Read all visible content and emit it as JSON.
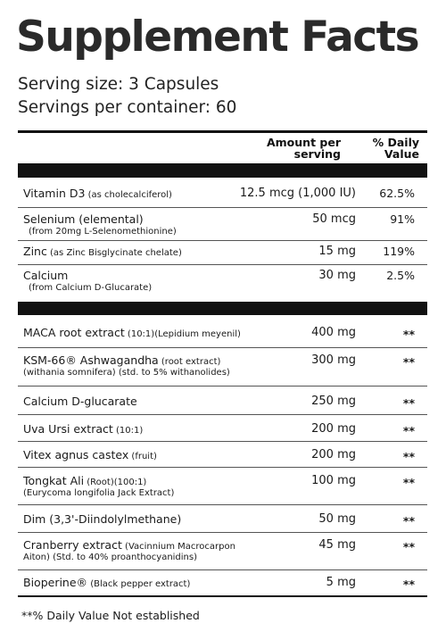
{
  "title": "Supplement Facts",
  "serving_size": "Serving size: 3 Capsules",
  "servings_per_container": "Servings per container: 60",
  "header": {
    "amount_line1": "Amount per",
    "amount_line2": "serving",
    "dv_line1": "%  Daily",
    "dv_line2": "Value"
  },
  "vitamins": [
    {
      "name": "Vitamin D3",
      "sub": " (as cholecalciferol)",
      "sub2": "",
      "amount": "12.5 mcg (1,000 IU)",
      "dv": "62.5%"
    },
    {
      "name": "Selenium (elemental)",
      "sub": "",
      "sub2": "(from 20mg L-Selenomethionine)",
      "amount": "50 mcg",
      "dv": "91%"
    },
    {
      "name": "Zinc",
      "sub": " (as Zinc Bisglycinate chelate)",
      "sub2": "",
      "amount": "15 mg",
      "dv": "119%"
    },
    {
      "name": "Calcium",
      "sub": "",
      "sub2": "(from Calcium D-Glucarate)",
      "amount": "30 mg",
      "dv": "2.5%"
    }
  ],
  "blend": [
    {
      "name": "MACA root extract",
      "sub": " (10:1)(Lepidium meyenil)",
      "sub2": "",
      "amount": "400 mg",
      "dv": "**"
    },
    {
      "name": "KSM-66® Ashwagandha",
      "sub": " (root extract)",
      "sub2": "(withania somnifera) (std. to 5% withanolides)",
      "amount": "300 mg",
      "dv": "**"
    },
    {
      "name": "Calcium D-glucarate",
      "sub": "",
      "sub2": "",
      "amount": "250 mg",
      "dv": "**"
    },
    {
      "name": "Uva Ursi extract",
      "sub": " (10:1)",
      "sub2": "",
      "amount": "200 mg",
      "dv": "**"
    },
    {
      "name": "Vitex agnus castex",
      "sub": " (fruit)",
      "sub2": "",
      "amount": "200 mg",
      "dv": "**"
    },
    {
      "name": "Tongkat Ali",
      "sub": " (Root)(100:1)",
      "sub2": "(Eurycoma longifolia Jack Extract)",
      "amount": "100 mg",
      "dv": "**"
    },
    {
      "name": "Dim (3,3'-Diindolylmethane)",
      "sub": "",
      "sub2": "",
      "amount": "50 mg",
      "dv": "**"
    },
    {
      "name": "Cranberry extract",
      "sub": " (Vacinnium Macrocarpon",
      "sub2": "Aiton) (Std. to 40% proanthocyanidins)",
      "amount": "45 mg",
      "dv": "**"
    },
    {
      "name": "Bioperine®",
      "sub": " (Black pepper extract)",
      "sub2": "",
      "amount": "5 mg",
      "dv": "**"
    }
  ],
  "footnote": "**% Daily Value Not established"
}
